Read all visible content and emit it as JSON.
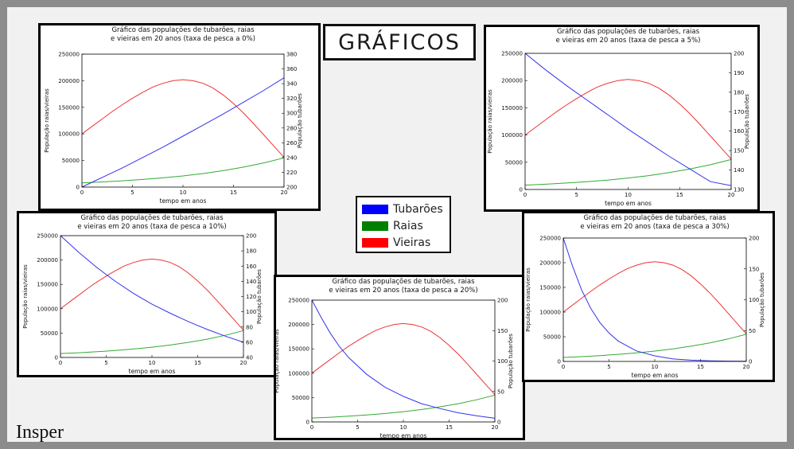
{
  "slide_title": "GRÁFICOS",
  "logo_text": "Insper",
  "legend": [
    {
      "label": "Tubarões",
      "color": "#0000ff"
    },
    {
      "label": "Raias",
      "color": "#008000"
    },
    {
      "label": "Vieiras",
      "color": "#ff0000"
    }
  ],
  "colors": {
    "tubaroes": "#3333ee",
    "raias": "#33aa33",
    "vieiras": "#ee3333"
  },
  "chart_data": [
    {
      "type": "line",
      "title": [
        "Gráfico das populações de tubarões, raias",
        "e vieiras em 20 anos (taxa de pesca a 0%)"
      ],
      "xlabel": "tempo em anos",
      "ylabel_left": "População raias/vieiras",
      "ylabel_right": "População tubarões",
      "xlim": [
        0,
        20
      ],
      "xticks": [
        0,
        5,
        10,
        15,
        20
      ],
      "ylim_left": [
        0,
        250000
      ],
      "yticks_left": [
        0,
        50000,
        100000,
        150000,
        200000,
        250000
      ],
      "ylim_right": [
        200,
        380
      ],
      "yticks_right": [
        200,
        220,
        240,
        260,
        280,
        300,
        320,
        340,
        360,
        380
      ],
      "series": [
        {
          "name": "Vieiras",
          "axis": "left",
          "x": [
            0,
            1,
            2,
            3,
            4,
            5,
            6,
            7,
            8,
            9,
            10,
            11,
            12,
            13,
            14,
            15,
            16,
            17,
            18,
            19,
            20
          ],
          "y": [
            100000,
            114000,
            128000,
            142000,
            155000,
            167000,
            178000,
            188000,
            195000,
            200000,
            202000,
            200000,
            195000,
            186000,
            173000,
            157000,
            139000,
            119000,
            98000,
            77000,
            56000
          ]
        },
        {
          "name": "Raias",
          "axis": "left",
          "x": [
            0,
            2,
            4,
            6,
            8,
            10,
            12,
            14,
            16,
            18,
            20
          ],
          "y": [
            8000,
            9700,
            11800,
            14300,
            17300,
            21000,
            25500,
            31000,
            37500,
            45500,
            55000
          ]
        },
        {
          "name": "Tubarões",
          "axis": "right",
          "x": [
            0,
            2,
            4,
            6,
            8,
            10,
            12,
            14,
            16,
            18,
            20
          ],
          "y": [
            200,
            213,
            226,
            240,
            254,
            269,
            284,
            299,
            315,
            331,
            348
          ]
        }
      ]
    },
    {
      "type": "line",
      "title": [
        "Gráfico das populações de tubarões, raias",
        "e vieiras em 20 anos (taxa de pesca a 5%)"
      ],
      "xlabel": "tempo em anos",
      "ylabel_left": "População raias/vieiras",
      "ylabel_right": "População tubarões",
      "xlim": [
        0,
        20
      ],
      "xticks": [
        0,
        5,
        10,
        15,
        20
      ],
      "ylim_left": [
        0,
        250000
      ],
      "yticks_left": [
        0,
        50000,
        100000,
        150000,
        200000,
        250000
      ],
      "ylim_right": [
        130,
        200
      ],
      "yticks_right": [
        130,
        140,
        150,
        160,
        170,
        180,
        190,
        200
      ],
      "series": [
        {
          "name": "Vieiras",
          "axis": "left",
          "x": [
            0,
            1,
            2,
            3,
            4,
            5,
            6,
            7,
            8,
            9,
            10,
            11,
            12,
            13,
            14,
            15,
            16,
            17,
            18,
            19,
            20
          ],
          "y": [
            100000,
            114000,
            128000,
            142000,
            155000,
            167000,
            178000,
            188000,
            195000,
            200000,
            202000,
            200000,
            195000,
            186000,
            173000,
            157000,
            139000,
            119000,
            98000,
            77000,
            56000
          ]
        },
        {
          "name": "Raias",
          "axis": "left",
          "x": [
            0,
            2,
            4,
            6,
            8,
            10,
            12,
            14,
            16,
            18,
            20
          ],
          "y": [
            8000,
            9700,
            11800,
            14300,
            17300,
            21000,
            25500,
            31000,
            37500,
            45500,
            55000
          ]
        },
        {
          "name": "Tubarões",
          "axis": "right",
          "x": [
            0,
            2,
            4,
            6,
            8,
            10,
            12,
            14,
            16,
            18,
            20
          ],
          "y": [
            200,
            191.5,
            183.5,
            176,
            168.5,
            161,
            154,
            147,
            140.5,
            134,
            132
          ]
        }
      ]
    },
    {
      "type": "line",
      "title": [
        "Gráfico das populações de tubarões, raias",
        "e vieiras em 20 anos (taxa de pesca a 10%)"
      ],
      "xlabel": "tempo em anos",
      "ylabel_left": "População raias/vieiras",
      "ylabel_right": "População tubarões",
      "xlim": [
        0,
        20
      ],
      "xticks": [
        0,
        5,
        10,
        15,
        20
      ],
      "ylim_left": [
        0,
        250000
      ],
      "yticks_left": [
        0,
        50000,
        100000,
        150000,
        200000,
        250000
      ],
      "ylim_right": [
        40,
        200
      ],
      "yticks_right": [
        40,
        60,
        80,
        100,
        120,
        140,
        160,
        180,
        200
      ],
      "series": [
        {
          "name": "Vieiras",
          "axis": "left",
          "x": [
            0,
            1,
            2,
            3,
            4,
            5,
            6,
            7,
            8,
            9,
            10,
            11,
            12,
            13,
            14,
            15,
            16,
            17,
            18,
            19,
            20
          ],
          "y": [
            100000,
            114000,
            128000,
            142000,
            155000,
            167000,
            178000,
            188000,
            195000,
            200000,
            202000,
            200000,
            195000,
            186000,
            173000,
            157000,
            139000,
            119000,
            98000,
            77000,
            56000
          ]
        },
        {
          "name": "Raias",
          "axis": "left",
          "x": [
            0,
            2,
            4,
            6,
            8,
            10,
            12,
            14,
            16,
            18,
            20
          ],
          "y": [
            8000,
            9700,
            11800,
            14300,
            17300,
            21000,
            25500,
            31000,
            37500,
            45500,
            55000
          ]
        },
        {
          "name": "Tubarões",
          "axis": "right",
          "x": [
            0,
            2,
            4,
            6,
            8,
            10,
            12,
            14,
            16,
            18,
            20
          ],
          "y": [
            200,
            178,
            158,
            140,
            124,
            110,
            98,
            87,
            77,
            68,
            60
          ]
        }
      ]
    },
    {
      "type": "line",
      "title": [
        "Gráfico das populações de tubarões, raias",
        "e vieiras em 20 anos (taxa de pesca a 20%)"
      ],
      "xlabel": "tempo em anos",
      "ylabel_left": "População raias/vieiras",
      "ylabel_right": "População tubarões",
      "xlim": [
        0,
        20
      ],
      "xticks": [
        0,
        5,
        10,
        15,
        20
      ],
      "ylim_left": [
        0,
        250000
      ],
      "yticks_left": [
        0,
        50000,
        100000,
        150000,
        200000,
        250000
      ],
      "ylim_right": [
        0,
        200
      ],
      "yticks_right": [
        0,
        50,
        100,
        150,
        200
      ],
      "series": [
        {
          "name": "Vieiras",
          "axis": "left",
          "x": [
            0,
            1,
            2,
            3,
            4,
            5,
            6,
            7,
            8,
            9,
            10,
            11,
            12,
            13,
            14,
            15,
            16,
            17,
            18,
            19,
            20
          ],
          "y": [
            100000,
            114000,
            128000,
            142000,
            155000,
            167000,
            178000,
            188000,
            195000,
            200000,
            202000,
            200000,
            195000,
            186000,
            173000,
            157000,
            139000,
            119000,
            98000,
            77000,
            56000
          ]
        },
        {
          "name": "Raias",
          "axis": "left",
          "x": [
            0,
            2,
            4,
            6,
            8,
            10,
            12,
            14,
            16,
            18,
            20
          ],
          "y": [
            8000,
            9700,
            11800,
            14300,
            17300,
            21000,
            25500,
            31000,
            37500,
            45500,
            55000
          ]
        },
        {
          "name": "Tubarões",
          "axis": "right",
          "x": [
            0,
            1,
            2,
            3,
            4,
            6,
            8,
            10,
            12,
            14,
            16,
            18,
            20
          ],
          "y": [
            200,
            172,
            146,
            124,
            106,
            78,
            57,
            42,
            30,
            22,
            15,
            10,
            6
          ]
        }
      ]
    },
    {
      "type": "line",
      "title": [
        "Gráfico das populações de tubarões, raias",
        "e vieiras em 20 anos (taxa de pesca a 30%)"
      ],
      "xlabel": "tempo em anos",
      "ylabel_left": "População raias/vieiras",
      "ylabel_right": "População tubarões",
      "xlim": [
        0,
        20
      ],
      "xticks": [
        0,
        5,
        10,
        15,
        20
      ],
      "ylim_left": [
        0,
        250000
      ],
      "yticks_left": [
        0,
        50000,
        100000,
        150000,
        200000,
        250000
      ],
      "ylim_right": [
        0,
        200
      ],
      "yticks_right": [
        0,
        50,
        100,
        150,
        200
      ],
      "series": [
        {
          "name": "Vieiras",
          "axis": "left",
          "x": [
            0,
            1,
            2,
            3,
            4,
            5,
            6,
            7,
            8,
            9,
            10,
            11,
            12,
            13,
            14,
            15,
            16,
            17,
            18,
            19,
            20
          ],
          "y": [
            100000,
            114000,
            128000,
            142000,
            155000,
            167000,
            178000,
            188000,
            195000,
            200000,
            202000,
            200000,
            195000,
            186000,
            173000,
            157000,
            139000,
            119000,
            98000,
            77000,
            56000
          ]
        },
        {
          "name": "Raias",
          "axis": "left",
          "x": [
            0,
            2,
            4,
            6,
            8,
            10,
            12,
            14,
            16,
            18,
            20
          ],
          "y": [
            8000,
            9700,
            11800,
            14300,
            17300,
            21000,
            25500,
            31000,
            37500,
            45500,
            55000
          ]
        },
        {
          "name": "Tubarões",
          "axis": "right",
          "x": [
            0,
            1,
            2,
            3,
            4,
            5,
            6,
            8,
            10,
            12,
            14,
            16,
            18,
            20
          ],
          "y": [
            200,
            155,
            116,
            86,
            63,
            46,
            33,
            17,
            9,
            4,
            2,
            1,
            0.5,
            0.2
          ]
        }
      ]
    }
  ]
}
